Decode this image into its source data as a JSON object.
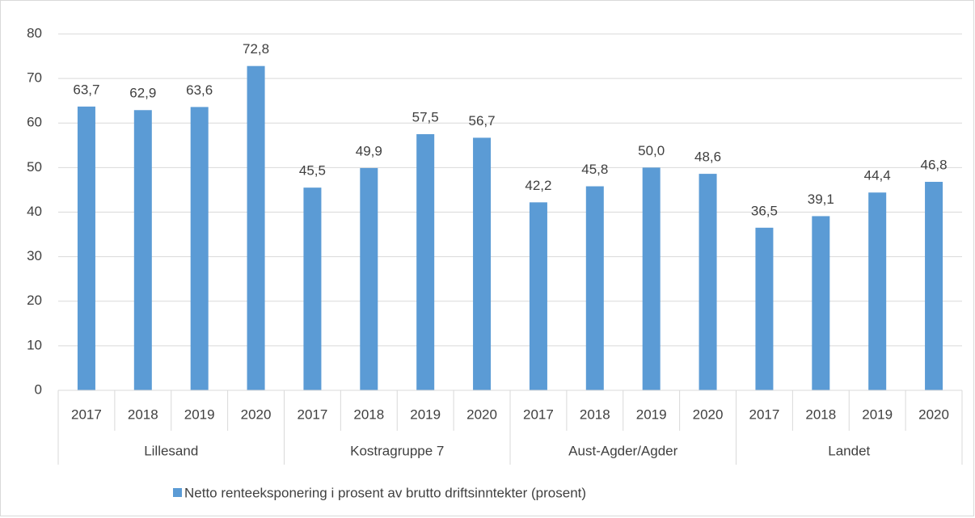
{
  "chart_data": {
    "type": "bar",
    "groups": [
      {
        "name": "Lillesand",
        "categories": [
          "2017",
          "2018",
          "2019",
          "2020"
        ]
      },
      {
        "name": "Kostragruppe 7",
        "categories": [
          "2017",
          "2018",
          "2019",
          "2020"
        ]
      },
      {
        "name": "Aust-Agder/Agder",
        "categories": [
          "2017",
          "2018",
          "2019",
          "2020"
        ]
      },
      {
        "name": "Landet",
        "categories": [
          "2017",
          "2018",
          "2019",
          "2020"
        ]
      }
    ],
    "series": [
      {
        "name": "Netto renteeksponering i prosent av brutto driftsinntekter (prosent)",
        "color": "#5b9bd5",
        "values": [
          63.7,
          62.9,
          63.6,
          72.8,
          45.5,
          49.9,
          57.5,
          56.7,
          42.2,
          45.8,
          50.0,
          48.6,
          36.5,
          39.1,
          44.4,
          46.8
        ],
        "value_labels": [
          "63,7",
          "62,9",
          "63,6",
          "72,8",
          "45,5",
          "49,9",
          "57,5",
          "56,7",
          "42,2",
          "45,8",
          "50,0",
          "48,6",
          "36,5",
          "39,1",
          "44,4",
          "46,8"
        ]
      }
    ],
    "ylim": [
      0,
      80
    ],
    "yticks": [
      0,
      10,
      20,
      30,
      40,
      50,
      60,
      70,
      80
    ],
    "grid": true,
    "legend": "bottom"
  }
}
